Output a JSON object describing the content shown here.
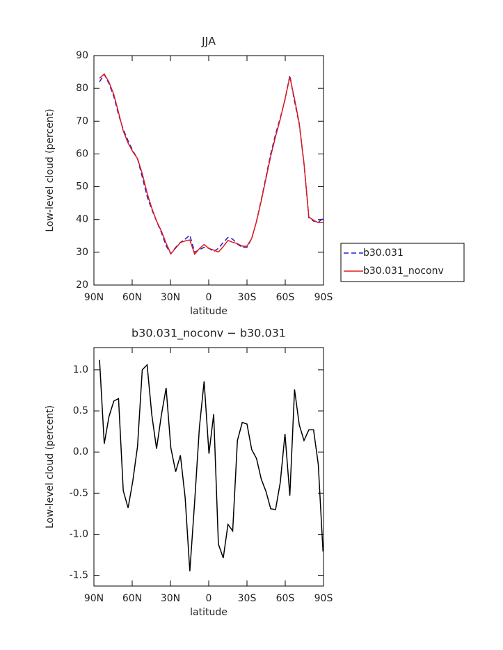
{
  "chart_data": [
    {
      "type": "line",
      "title": "JJA",
      "xlabel": "latitude",
      "ylabel": "Low-level cloud (percent)",
      "x": [
        85.6,
        81.9,
        78.2,
        74.4,
        70.7,
        67.0,
        63.2,
        59.5,
        55.8,
        52.1,
        48.3,
        44.6,
        40.9,
        37.1,
        33.4,
        29.7,
        25.9,
        22.2,
        18.5,
        14.8,
        11.0,
        7.3,
        3.6,
        -0.2,
        -3.9,
        -7.6,
        -11.4,
        -15.1,
        -18.8,
        -22.5,
        -26.3,
        -30.0,
        -33.7,
        -37.5,
        -41.2,
        -44.9,
        -48.6,
        -52.4,
        -56.1,
        -59.8,
        -63.6,
        -67.3,
        -71.0,
        -74.7,
        -78.5,
        -82.2,
        -85.9,
        -89.6
      ],
      "series": [
        {
          "name": "b30.031",
          "color": "#1f1fd6",
          "linestyle": "dashed",
          "values": [
            82,
            84.3,
            81.5,
            77.5,
            72,
            67.5,
            64,
            61,
            58.5,
            53,
            47,
            43,
            39.5,
            36,
            32,
            29.5,
            31.5,
            33,
            34,
            35.2,
            30,
            30.8,
            31.5,
            31.2,
            30.2,
            31.2,
            33,
            34.5,
            34,
            32.5,
            31.5,
            31.5,
            34.2,
            39.5,
            46,
            53,
            60,
            66,
            71,
            76.5,
            84,
            76,
            69,
            57,
            40.5,
            39.5,
            39.2,
            40.3
          ]
        },
        {
          "name": "b30.031_noconv",
          "color": "#e01a1a",
          "linestyle": "solid",
          "values": [
            83.12,
            84.4,
            81.93,
            78.12,
            72.65,
            67.03,
            63.32,
            60.65,
            58.57,
            54,
            48.06,
            43.45,
            39.54,
            36.45,
            32.78,
            29.55,
            31.26,
            32.96,
            33.45,
            33.75,
            29.4,
            31.1,
            32.36,
            31.18,
            30.66,
            30.08,
            31.71,
            33.62,
            33.04,
            32.64,
            31.86,
            31.84,
            34.23,
            39.42,
            45.67,
            52.52,
            59.31,
            65.3,
            70.63,
            76.72,
            83.47,
            76.76,
            69.33,
            57.14,
            40.77,
            39.77,
            39.05,
            39.09
          ]
        }
      ],
      "xlim": [
        90,
        -90
      ],
      "xticks": [
        {
          "value": 90,
          "label": "90N"
        },
        {
          "value": 60,
          "label": "60N"
        },
        {
          "value": 30,
          "label": "30N"
        },
        0,
        {
          "value": -30,
          "label": "30S"
        },
        {
          "value": -60,
          "label": "60S"
        },
        {
          "value": -90,
          "label": "90S"
        }
      ],
      "ylim": [
        20,
        90
      ],
      "yticks": [
        20,
        30,
        40,
        50,
        60,
        70,
        80,
        90
      ],
      "legend": "right"
    },
    {
      "type": "line",
      "title": "b30.031_noconv − b30.031",
      "xlabel": "latitude",
      "ylabel": "Low-level cloud (percent)",
      "x": [
        85.6,
        81.9,
        78.2,
        74.4,
        70.7,
        67.0,
        63.2,
        59.5,
        55.8,
        52.1,
        48.3,
        44.6,
        40.9,
        37.1,
        33.4,
        29.7,
        25.9,
        22.2,
        18.5,
        14.8,
        11.0,
        7.3,
        3.6,
        -0.2,
        -3.9,
        -7.6,
        -11.4,
        -15.1,
        -18.8,
        -22.5,
        -26.3,
        -30.0,
        -33.7,
        -37.5,
        -41.2,
        -44.9,
        -48.6,
        -52.4,
        -56.1,
        -59.8,
        -63.6,
        -67.3,
        -71.0,
        -74.7,
        -78.5,
        -82.2,
        -85.9,
        -89.6
      ],
      "series": [
        {
          "color": "#000000",
          "linestyle": "solid",
          "values": [
            1.12,
            0.1,
            0.43,
            0.62,
            0.65,
            -0.47,
            -0.68,
            -0.35,
            0.07,
            1.0,
            1.06,
            0.45,
            0.04,
            0.45,
            0.78,
            0.05,
            -0.24,
            -0.04,
            -0.55,
            -1.45,
            -0.6,
            0.3,
            0.86,
            -0.02,
            0.46,
            -1.12,
            -1.29,
            -0.88,
            -0.96,
            0.14,
            0.36,
            0.34,
            0.03,
            -0.08,
            -0.33,
            -0.48,
            -0.69,
            -0.7,
            -0.37,
            0.22,
            -0.53,
            0.76,
            0.33,
            0.14,
            0.27,
            0.27,
            -0.15,
            -1.21
          ]
        }
      ],
      "xlim": [
        90,
        -90
      ],
      "xticks": [
        {
          "value": 90,
          "label": "90N"
        },
        {
          "value": 60,
          "label": "60N"
        },
        {
          "value": 30,
          "label": "30N"
        },
        0,
        {
          "value": -30,
          "label": "30S"
        },
        {
          "value": -60,
          "label": "60S"
        },
        {
          "value": -90,
          "label": "90S"
        }
      ],
      "ylim": [
        -1.63,
        1.27
      ],
      "yticks": [
        {
          "value": -1.5,
          "label": "-1.5"
        },
        {
          "value": -1,
          "label": "-1.0"
        },
        -0.5,
        {
          "value": 0,
          "label": "0.0"
        },
        0.5,
        {
          "value": 1,
          "label": "1.0"
        }
      ]
    }
  ]
}
